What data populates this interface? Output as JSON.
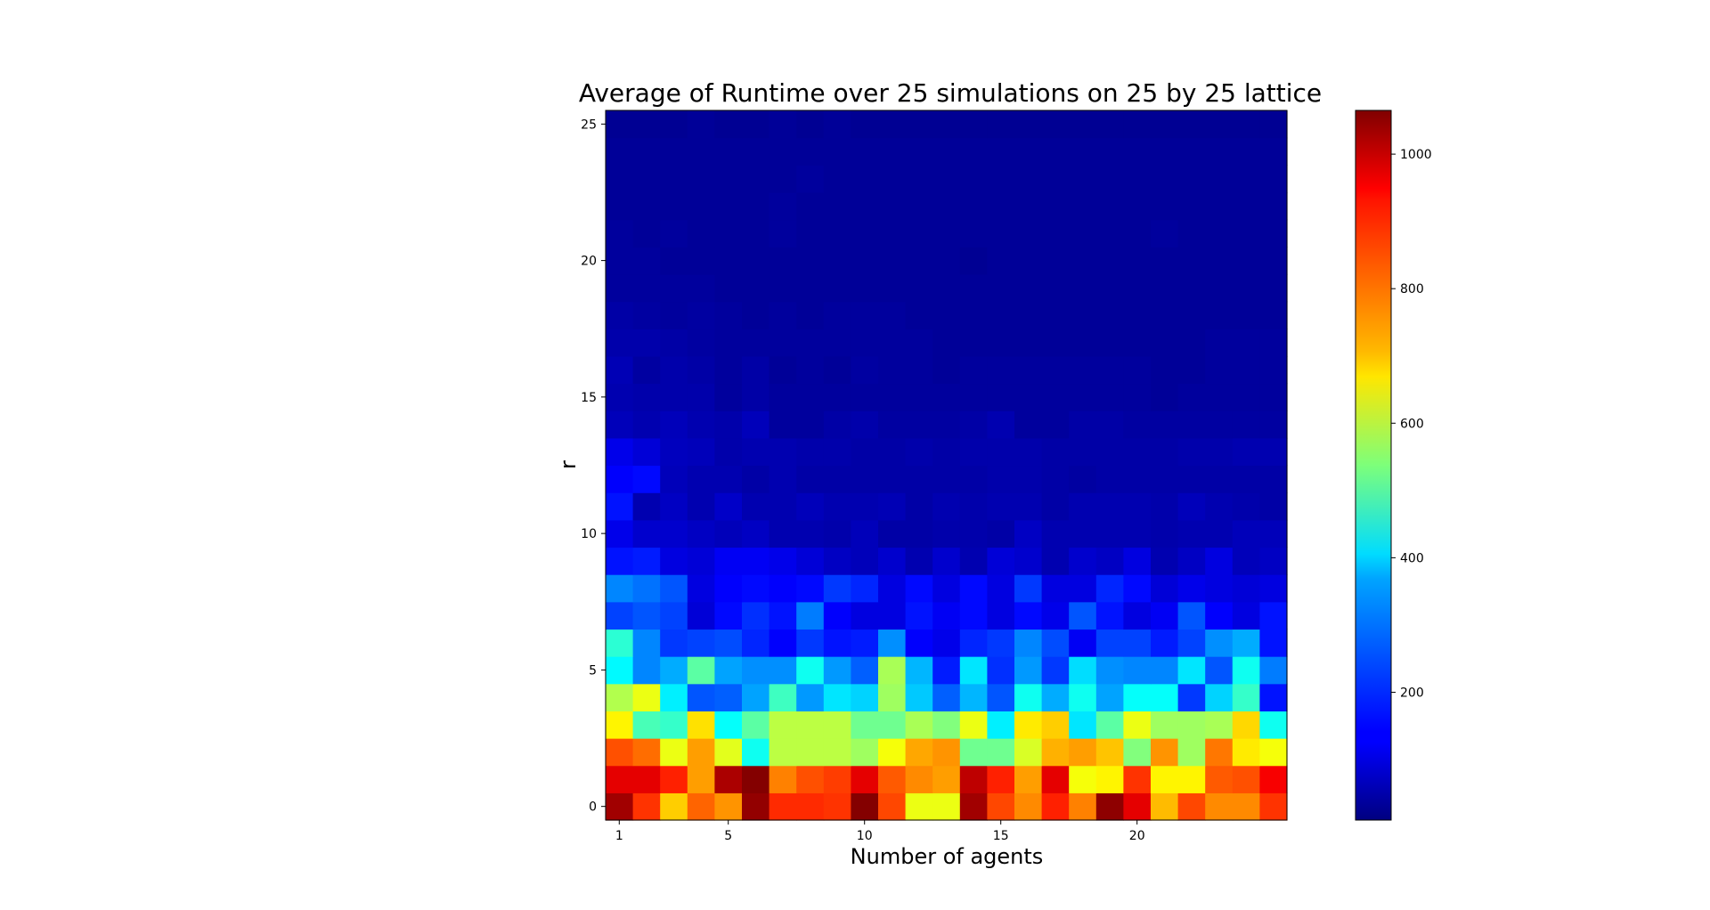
{
  "chart_data": {
    "type": "heatmap",
    "title": "Average of Runtime over 25 simulations on 25 by 25 lattice",
    "xlabel": "Number of agents",
    "ylabel": "r",
    "x": [
      1,
      2,
      3,
      4,
      5,
      6,
      7,
      8,
      9,
      10,
      11,
      12,
      13,
      14,
      15,
      16,
      17,
      18,
      19,
      20,
      21,
      22,
      23,
      24,
      25
    ],
    "y": [
      0,
      1,
      2,
      3,
      4,
      5,
      6,
      7,
      8,
      9,
      10,
      11,
      12,
      13,
      14,
      15,
      16,
      17,
      18,
      19,
      20,
      21,
      22,
      23,
      24,
      25
    ],
    "xticks": [
      1,
      5,
      10,
      15,
      20
    ],
    "yticks": [
      0,
      5,
      10,
      15,
      20,
      25
    ],
    "colormap": "jet",
    "colorbar": {
      "ticks": [
        200,
        400,
        600,
        800,
        1000
      ],
      "range": [
        10,
        1065
      ]
    },
    "values": [
      [
        1030,
        880,
        720,
        830,
        780,
        1045,
        890,
        890,
        880,
        1060,
        860,
        650,
        650,
        1030,
        860,
        790,
        900,
        800,
        1050,
        960,
        740,
        860,
        790,
        790,
        880
      ],
      [
        960,
        960,
        900,
        770,
        1020,
        1060,
        800,
        850,
        870,
        960,
        840,
        790,
        770,
        1000,
        900,
        770,
        960,
        660,
        680,
        880,
        680,
        680,
        840,
        850,
        940
      ],
      [
        850,
        820,
        650,
        770,
        640,
        420,
        600,
        600,
        600,
        570,
        660,
        760,
        780,
        520,
        520,
        630,
        750,
        770,
        730,
        540,
        780,
        570,
        810,
        690,
        660
      ],
      [
        680,
        480,
        460,
        700,
        410,
        500,
        600,
        600,
        600,
        520,
        520,
        580,
        540,
        650,
        390,
        690,
        720,
        380,
        500,
        650,
        570,
        570,
        580,
        710,
        420
      ],
      [
        590,
        650,
        390,
        230,
        240,
        310,
        470,
        300,
        380,
        360,
        570,
        350,
        240,
        330,
        230,
        420,
        320,
        420,
        310,
        410,
        410,
        200,
        360,
        460,
        160
      ],
      [
        400,
        280,
        320,
        500,
        310,
        290,
        290,
        420,
        300,
        240,
        580,
        330,
        170,
        380,
        190,
        300,
        200,
        370,
        290,
        280,
        280,
        380,
        230,
        420,
        270
      ],
      [
        450,
        280,
        200,
        210,
        220,
        180,
        140,
        200,
        160,
        170,
        290,
        140,
        120,
        180,
        200,
        280,
        220,
        130,
        210,
        210,
        170,
        210,
        290,
        320,
        160
      ],
      [
        210,
        230,
        210,
        100,
        150,
        190,
        160,
        270,
        140,
        110,
        110,
        160,
        130,
        150,
        110,
        150,
        120,
        230,
        160,
        110,
        130,
        230,
        140,
        110,
        160
      ],
      [
        280,
        260,
        230,
        110,
        140,
        150,
        140,
        150,
        200,
        180,
        110,
        150,
        110,
        150,
        110,
        200,
        110,
        110,
        180,
        150,
        100,
        120,
        110,
        100,
        110
      ],
      [
        160,
        170,
        110,
        100,
        130,
        130,
        120,
        100,
        80,
        70,
        90,
        60,
        90,
        60,
        100,
        90,
        60,
        90,
        80,
        110,
        60,
        80,
        110,
        70,
        80
      ],
      [
        120,
        90,
        90,
        80,
        70,
        80,
        60,
        60,
        55,
        70,
        50,
        50,
        55,
        55,
        50,
        80,
        60,
        60,
        60,
        60,
        55,
        60,
        60,
        70,
        70
      ],
      [
        160,
        60,
        80,
        60,
        85,
        60,
        60,
        70,
        60,
        60,
        65,
        50,
        60,
        55,
        60,
        60,
        50,
        60,
        60,
        60,
        55,
        70,
        60,
        55,
        50
      ],
      [
        140,
        150,
        70,
        60,
        60,
        50,
        60,
        50,
        50,
        50,
        50,
        50,
        50,
        50,
        55,
        55,
        50,
        45,
        50,
        50,
        50,
        50,
        50,
        50,
        50
      ],
      [
        120,
        100,
        75,
        70,
        55,
        60,
        60,
        55,
        55,
        50,
        50,
        55,
        50,
        55,
        55,
        55,
        50,
        50,
        50,
        50,
        50,
        55,
        55,
        60,
        60
      ],
      [
        70,
        60,
        70,
        60,
        55,
        70,
        40,
        40,
        50,
        55,
        45,
        45,
        45,
        50,
        60,
        40,
        40,
        50,
        50,
        45,
        45,
        45,
        45,
        45,
        45
      ],
      [
        60,
        55,
        55,
        55,
        40,
        50,
        40,
        40,
        40,
        40,
        40,
        40,
        40,
        40,
        40,
        40,
        40,
        40,
        40,
        40,
        35,
        40,
        40,
        40,
        40
      ],
      [
        65,
        45,
        55,
        50,
        40,
        50,
        35,
        40,
        35,
        45,
        40,
        40,
        35,
        40,
        40,
        40,
        40,
        40,
        40,
        40,
        35,
        35,
        40,
        40,
        40
      ],
      [
        55,
        55,
        50,
        45,
        40,
        40,
        40,
        40,
        40,
        40,
        40,
        40,
        35,
        35,
        35,
        35,
        35,
        35,
        35,
        35,
        35,
        35,
        40,
        40,
        40
      ],
      [
        50,
        45,
        40,
        45,
        40,
        35,
        40,
        35,
        40,
        40,
        40,
        35,
        35,
        35,
        35,
        35,
        35,
        35,
        35,
        35,
        35,
        35,
        35,
        35,
        35
      ],
      [
        40,
        40,
        40,
        40,
        35,
        35,
        35,
        35,
        35,
        35,
        35,
        35,
        35,
        35,
        35,
        35,
        35,
        35,
        35,
        35,
        35,
        35,
        35,
        35,
        35
      ],
      [
        40,
        40,
        35,
        35,
        35,
        35,
        35,
        35,
        35,
        35,
        35,
        35,
        35,
        30,
        35,
        35,
        35,
        35,
        35,
        35,
        35,
        35,
        35,
        35,
        35
      ],
      [
        40,
        35,
        40,
        35,
        35,
        35,
        40,
        35,
        35,
        35,
        35,
        35,
        35,
        35,
        35,
        35,
        35,
        35,
        35,
        35,
        40,
        35,
        35,
        35,
        35
      ],
      [
        35,
        35,
        35,
        35,
        35,
        35,
        40,
        35,
        35,
        35,
        35,
        35,
        35,
        35,
        35,
        35,
        35,
        35,
        35,
        35,
        35,
        35,
        35,
        35,
        35
      ],
      [
        35,
        35,
        35,
        35,
        35,
        35,
        35,
        40,
        35,
        35,
        35,
        35,
        35,
        35,
        35,
        35,
        35,
        35,
        35,
        35,
        35,
        35,
        35,
        35,
        35
      ],
      [
        35,
        35,
        35,
        35,
        35,
        35,
        35,
        35,
        35,
        35,
        35,
        35,
        35,
        35,
        35,
        35,
        35,
        35,
        35,
        35,
        35,
        35,
        35,
        35,
        35
      ],
      [
        30,
        30,
        30,
        35,
        30,
        30,
        35,
        30,
        35,
        30,
        30,
        30,
        30,
        30,
        30,
        30,
        30,
        30,
        30,
        30,
        30,
        30,
        30,
        30,
        30
      ]
    ]
  }
}
